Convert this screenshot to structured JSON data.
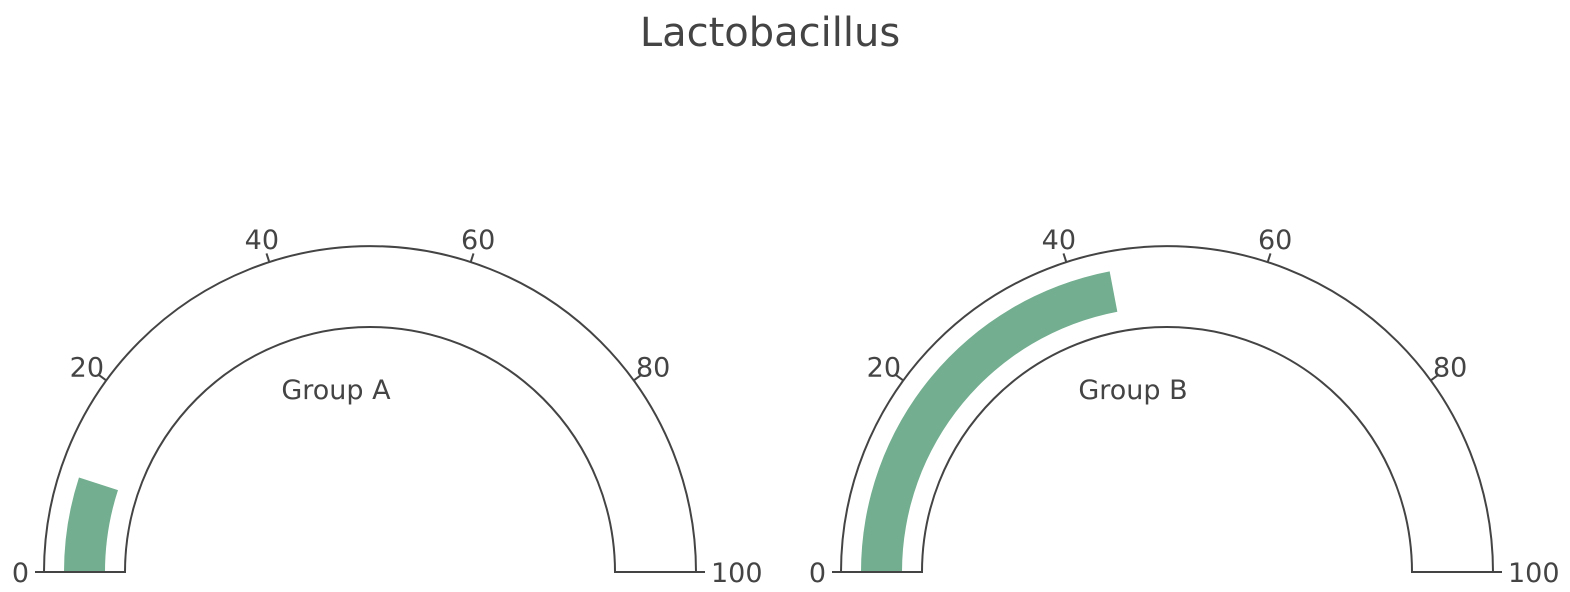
{
  "chart_data": {
    "type": "gauge",
    "title": "Lactobacillus",
    "range": [
      0,
      100
    ],
    "ticks": [
      0,
      20,
      40,
      60,
      80,
      100
    ],
    "bar_color": "#72ae8f",
    "line_color": "#444444",
    "gauges": [
      {
        "name": "Group A",
        "value": 10
      },
      {
        "name": "Group B",
        "value": 44
      }
    ]
  }
}
